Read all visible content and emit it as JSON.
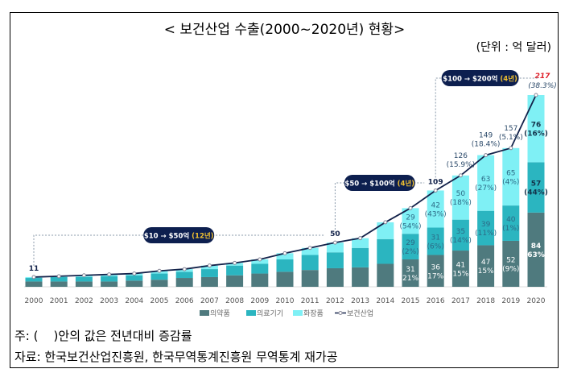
{
  "title": "< 보건산업 수출(2000~2020년) 현황>",
  "unit": "(단위 : 억 달러)",
  "notes": [
    "주: (    )안의 값은 전년대비 증감률",
    "자료: 한국보건산업진흥원, 한국무역통계진흥원 무역통계 재가공"
  ],
  "chart_data": {
    "type": "bar",
    "stacked": true,
    "categories": [
      "2000",
      "2001",
      "2002",
      "2003",
      "2004",
      "2005",
      "2006",
      "2007",
      "2008",
      "2009",
      "2010",
      "2011",
      "2012",
      "2013",
      "2014",
      "2015",
      "2016",
      "2017",
      "2018",
      "2019",
      "2020"
    ],
    "series": [
      {
        "name": "의약품",
        "color": "#4f7a7e",
        "values": [
          6,
          6,
          6,
          6,
          7,
          8,
          10,
          11,
          13,
          15,
          17,
          19,
          21,
          22,
          26,
          31,
          36,
          41,
          47,
          52,
          84
        ],
        "labels": {
          "2015": [
            "31",
            "(21%)"
          ],
          "2016": [
            "36",
            "(17%)"
          ],
          "2017": [
            "41",
            "(15%)"
          ],
          "2018": [
            "47",
            "(15%)"
          ],
          "2019": [
            "52",
            "(9%)"
          ],
          "2020": [
            "84",
            "(63%)"
          ]
        }
      },
      {
        "name": "의료기기",
        "color": "#2bb5c0",
        "values": [
          4,
          5,
          5,
          6,
          6,
          7,
          7,
          9,
          11,
          11,
          14,
          17,
          18,
          22,
          28,
          29,
          31,
          35,
          39,
          40,
          57
        ],
        "labels": {
          "2015": [
            "29",
            "(2%)"
          ],
          "2016": [
            "31",
            "(6%)"
          ],
          "2017": [
            "35",
            "(14%)"
          ],
          "2018": [
            "39",
            "(11%)"
          ],
          "2019": [
            "40",
            "(1%)"
          ],
          "2020": [
            "57",
            "(44%)"
          ]
        }
      },
      {
        "name": "화장품",
        "color": "#7ff0f5",
        "values": [
          1,
          1,
          2,
          2,
          2,
          3,
          3,
          4,
          3,
          5,
          7,
          8,
          11,
          11,
          19,
          29,
          42,
          50,
          63,
          65,
          76
        ],
        "labels": {
          "2015": [
            "29",
            "(54%)"
          ],
          "2016": [
            "42",
            "(43%)"
          ],
          "2017": [
            "50",
            "(18%)"
          ],
          "2018": [
            "63",
            "(27%)"
          ],
          "2019": [
            "65",
            "(4%)"
          ],
          "2020": [
            "76",
            "(16%)"
          ]
        }
      }
    ],
    "line": {
      "name": "보건산업",
      "color": "#13224a",
      "values": [
        11,
        12,
        13,
        14,
        15,
        18,
        20,
        24,
        27,
        31,
        38,
        44,
        50,
        55,
        73,
        89,
        109,
        126,
        149,
        157,
        217
      ],
      "labels": {
        "2000": [
          "11",
          ""
        ],
        "2012": [
          "50",
          ""
        ],
        "2016": [
          "109",
          ""
        ],
        "2017": [
          "126",
          "(15.9%)"
        ],
        "2018": [
          "149",
          "(18.4%)"
        ],
        "2019": [
          "157",
          "(5.1%)"
        ],
        "2020": [
          "217",
          "(38.3%)"
        ]
      }
    },
    "callouts": [
      {
        "text": "$10 → $50억",
        "years_label": "(12년)",
        "from": "2000",
        "to": "2012"
      },
      {
        "text": "$50 → $100억",
        "years_label": "(4년)",
        "from": "2012",
        "to": "2016"
      },
      {
        "text": "$100 → $200억",
        "years_label": "(4년)",
        "from": "2016",
        "to": "2020"
      }
    ],
    "highlight_color": "#e0202a",
    "callout_color": "#0d1f4f",
    "ylim": [
      0,
      217
    ]
  }
}
